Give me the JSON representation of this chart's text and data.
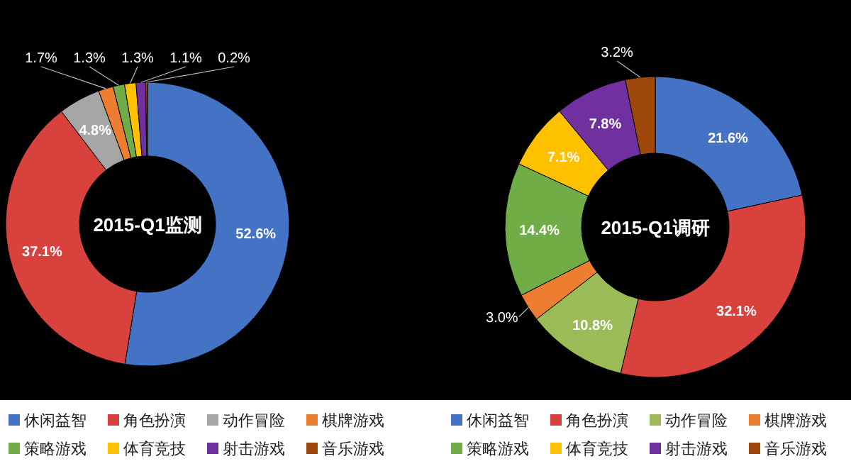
{
  "chart_data": [
    {
      "type": "donut",
      "title": "2015-Q1监测",
      "categories": [
        "休闲益智",
        "角色扮演",
        "动作冒险",
        "棋牌游戏",
        "策略游戏",
        "体育竞技",
        "射击游戏",
        "音乐游戏"
      ],
      "values": [
        52.6,
        37.1,
        4.8,
        1.7,
        1.3,
        1.3,
        1.1,
        0.2
      ],
      "colors": [
        "#4472c4",
        "#d9413c",
        "#a5a5a5",
        "#ed7d31",
        "#70ad47",
        "#ffc000",
        "#7030a0",
        "#9e480e"
      ],
      "value_labels": [
        "52.6%",
        "37.1%",
        "4.8%",
        "1.7%",
        "1.3%",
        "1.3%",
        "1.1%",
        "0.2%"
      ],
      "legend": "bottom"
    },
    {
      "type": "donut",
      "title": "2015-Q1调研",
      "categories": [
        "休闲益智",
        "角色扮演",
        "动作冒险",
        "棋牌游戏",
        "策略游戏",
        "体育竞技",
        "射击游戏",
        "音乐游戏"
      ],
      "values": [
        21.6,
        32.1,
        10.8,
        3.0,
        14.4,
        7.1,
        7.8,
        3.2
      ],
      "colors": [
        "#4472c4",
        "#d9413c",
        "#9bbb59",
        "#ed7d31",
        "#70ad47",
        "#ffc000",
        "#7030a0",
        "#9e480e"
      ],
      "value_labels": [
        "21.6%",
        "32.1%",
        "10.8%",
        "3.0%",
        "14.4%",
        "7.1%",
        "7.8%",
        "3.2%"
      ],
      "legend": "bottom"
    }
  ]
}
